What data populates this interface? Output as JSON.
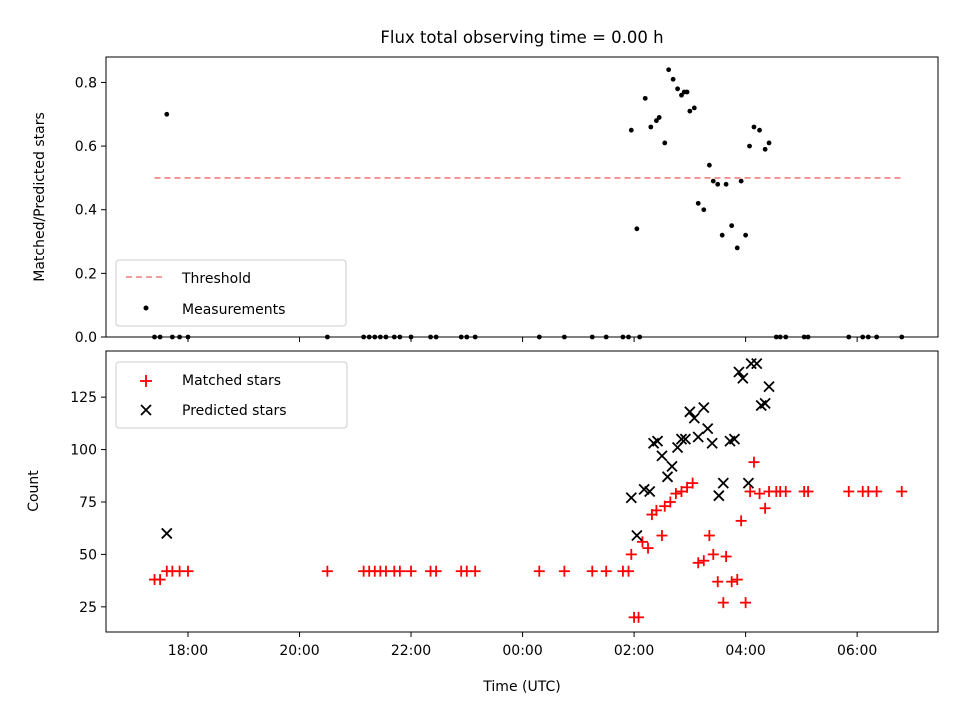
{
  "chart_data": [
    {
      "type": "scatter",
      "title": "Flux total observing time = 0.00 h",
      "xlabel": "",
      "ylabel": "Matched/Predicted stars",
      "xlim_hours": [
        16.53,
        31.45
      ],
      "ylim": [
        0,
        0.88
      ],
      "yticks": [
        0.0,
        0.2,
        0.4,
        0.6,
        0.8
      ],
      "ytick_labels": [
        "0.0",
        "0.2",
        "0.4",
        "0.6",
        "0.8"
      ],
      "legend_position": "lower-left",
      "legend": [
        {
          "label": "Threshold",
          "marker": "dashed-line",
          "color": "#f08080"
        },
        {
          "label": "Measurements",
          "marker": "dot",
          "color": "#000000"
        }
      ],
      "threshold": {
        "value": 0.5,
        "x_range": [
          17.4,
          30.8
        ]
      },
      "series": [
        {
          "name": "Measurements",
          "color": "#000000",
          "points": [
            [
              17.4,
              0
            ],
            [
              17.5,
              0
            ],
            [
              17.62,
              0.7
            ],
            [
              17.72,
              0
            ],
            [
              17.85,
              0
            ],
            [
              18.0,
              0
            ],
            [
              20.5,
              0
            ],
            [
              21.15,
              0
            ],
            [
              21.25,
              0
            ],
            [
              21.35,
              0
            ],
            [
              21.45,
              0
            ],
            [
              21.55,
              0
            ],
            [
              21.7,
              0
            ],
            [
              21.8,
              0
            ],
            [
              22.0,
              0
            ],
            [
              22.35,
              0
            ],
            [
              22.45,
              0
            ],
            [
              22.9,
              0
            ],
            [
              23.0,
              0
            ],
            [
              23.15,
              0
            ],
            [
              24.3,
              0
            ],
            [
              24.75,
              0
            ],
            [
              25.25,
              0
            ],
            [
              25.5,
              0
            ],
            [
              25.8,
              0
            ],
            [
              25.9,
              0
            ],
            [
              25.95,
              0.65
            ],
            [
              26.05,
              0.34
            ],
            [
              26.1,
              0
            ],
            [
              26.2,
              0.75
            ],
            [
              26.3,
              0.66
            ],
            [
              26.4,
              0.68
            ],
            [
              26.45,
              0.69
            ],
            [
              26.55,
              0.61
            ],
            [
              26.62,
              0.84
            ],
            [
              26.7,
              0.81
            ],
            [
              26.78,
              0.78
            ],
            [
              26.85,
              0.76
            ],
            [
              26.9,
              0.77
            ],
            [
              26.95,
              0.77
            ],
            [
              27.0,
              0.71
            ],
            [
              27.08,
              0.72
            ],
            [
              27.15,
              0.42
            ],
            [
              27.25,
              0.4
            ],
            [
              27.35,
              0.54
            ],
            [
              27.42,
              0.49
            ],
            [
              27.5,
              0.48
            ],
            [
              27.58,
              0.32
            ],
            [
              27.65,
              0.48
            ],
            [
              27.75,
              0.35
            ],
            [
              27.85,
              0.28
            ],
            [
              27.92,
              0.49
            ],
            [
              28.0,
              0.32
            ],
            [
              28.07,
              0.6
            ],
            [
              28.15,
              0.66
            ],
            [
              28.25,
              0.65
            ],
            [
              28.35,
              0.59
            ],
            [
              28.42,
              0.61
            ],
            [
              28.55,
              0
            ],
            [
              28.62,
              0
            ],
            [
              28.72,
              0
            ],
            [
              29.05,
              0
            ],
            [
              29.12,
              0
            ],
            [
              29.85,
              0
            ],
            [
              30.1,
              0
            ],
            [
              30.2,
              0
            ],
            [
              30.35,
              0
            ],
            [
              30.8,
              0
            ]
          ]
        }
      ],
      "x_ticks_hours": [
        18,
        20,
        22,
        24,
        26,
        28,
        30
      ]
    },
    {
      "type": "scatter",
      "title": "",
      "xlabel": "Time (UTC)",
      "ylabel": "Count",
      "xlim_hours": [
        16.53,
        31.45
      ],
      "ylim": [
        13,
        147
      ],
      "yticks": [
        25,
        50,
        75,
        100,
        125
      ],
      "ytick_labels": [
        "25",
        "50",
        "75",
        "100",
        "125"
      ],
      "x_ticks_hours": [
        18,
        20,
        22,
        24,
        26,
        28,
        30
      ],
      "x_tick_labels": [
        "18:00",
        "20:00",
        "22:00",
        "00:00",
        "02:00",
        "04:00",
        "06:00"
      ],
      "legend_position": "upper-left",
      "legend": [
        {
          "label": "Matched stars",
          "marker": "plus",
          "color": "#ff0000"
        },
        {
          "label": "Predicted stars",
          "marker": "x",
          "color": "#000000"
        }
      ],
      "series": [
        {
          "name": "Matched stars",
          "color": "#ff0000",
          "points": [
            [
              17.4,
              38
            ],
            [
              17.5,
              38
            ],
            [
              17.62,
              42
            ],
            [
              17.72,
              42
            ],
            [
              17.85,
              42
            ],
            [
              18.0,
              42
            ],
            [
              20.5,
              42
            ],
            [
              21.15,
              42
            ],
            [
              21.25,
              42
            ],
            [
              21.35,
              42
            ],
            [
              21.45,
              42
            ],
            [
              21.55,
              42
            ],
            [
              21.7,
              42
            ],
            [
              21.8,
              42
            ],
            [
              22.0,
              42
            ],
            [
              22.35,
              42
            ],
            [
              22.45,
              42
            ],
            [
              22.9,
              42
            ],
            [
              23.0,
              42
            ],
            [
              23.15,
              42
            ],
            [
              24.3,
              42
            ],
            [
              24.75,
              42
            ],
            [
              25.25,
              42
            ],
            [
              25.5,
              42
            ],
            [
              25.8,
              42
            ],
            [
              25.9,
              42
            ],
            [
              25.95,
              50
            ],
            [
              26.0,
              20
            ],
            [
              26.08,
              20
            ],
            [
              26.15,
              56
            ],
            [
              26.25,
              53
            ],
            [
              26.32,
              69
            ],
            [
              26.4,
              71
            ],
            [
              26.5,
              59
            ],
            [
              26.55,
              73
            ],
            [
              26.65,
              75
            ],
            [
              26.75,
              79
            ],
            [
              26.85,
              80
            ],
            [
              26.95,
              82
            ],
            [
              27.05,
              84
            ],
            [
              27.15,
              46
            ],
            [
              27.25,
              47
            ],
            [
              27.35,
              59
            ],
            [
              27.42,
              50
            ],
            [
              27.5,
              37
            ],
            [
              27.6,
              27
            ],
            [
              27.65,
              49
            ],
            [
              27.75,
              37
            ],
            [
              27.85,
              38
            ],
            [
              27.92,
              66
            ],
            [
              28.0,
              27
            ],
            [
              28.08,
              80
            ],
            [
              28.15,
              94
            ],
            [
              28.25,
              79
            ],
            [
              28.35,
              72
            ],
            [
              28.42,
              80
            ],
            [
              28.55,
              80
            ],
            [
              28.62,
              80
            ],
            [
              28.72,
              80
            ],
            [
              29.05,
              80
            ],
            [
              29.12,
              80
            ],
            [
              29.85,
              80
            ],
            [
              30.1,
              80
            ],
            [
              30.2,
              80
            ],
            [
              30.35,
              80
            ],
            [
              30.8,
              80
            ]
          ]
        },
        {
          "name": "Predicted stars",
          "color": "#000000",
          "points": [
            [
              17.62,
              60
            ],
            [
              25.95,
              77
            ],
            [
              26.05,
              59
            ],
            [
              26.18,
              81
            ],
            [
              26.28,
              80
            ],
            [
              26.35,
              103
            ],
            [
              26.42,
              104
            ],
            [
              26.5,
              97
            ],
            [
              26.6,
              87
            ],
            [
              26.68,
              92
            ],
            [
              26.78,
              101
            ],
            [
              26.85,
              105
            ],
            [
              26.92,
              105
            ],
            [
              27.0,
              118
            ],
            [
              27.08,
              115
            ],
            [
              27.15,
              106
            ],
            [
              27.25,
              120
            ],
            [
              27.32,
              110
            ],
            [
              27.4,
              103
            ],
            [
              27.52,
              78
            ],
            [
              27.6,
              84
            ],
            [
              27.72,
              104
            ],
            [
              27.8,
              105
            ],
            [
              27.88,
              137
            ],
            [
              27.95,
              134
            ],
            [
              28.05,
              84
            ],
            [
              28.1,
              141
            ],
            [
              28.2,
              141
            ],
            [
              28.28,
              121
            ],
            [
              28.35,
              122
            ],
            [
              28.42,
              130
            ]
          ]
        }
      ]
    }
  ]
}
